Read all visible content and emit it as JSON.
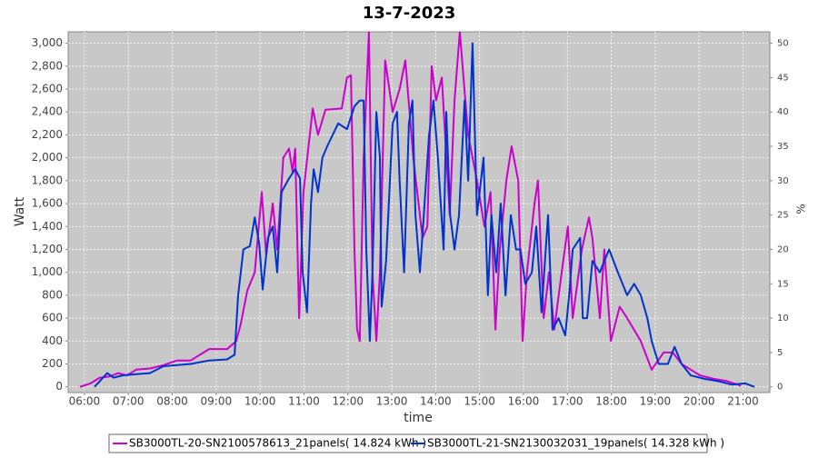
{
  "chart_data": {
    "type": "line",
    "title": "13-7-2023",
    "xlabel": "time",
    "ylabel": "Watt",
    "y2label": "%",
    "xlim": [
      5.63,
      21.61
    ],
    "xticks": [
      {
        "value": 6,
        "label": "06:00"
      },
      {
        "value": 7,
        "label": "07:00"
      },
      {
        "value": 8,
        "label": "08:00"
      },
      {
        "value": 9,
        "label": "09:00"
      },
      {
        "value": 10,
        "label": "10:00"
      },
      {
        "value": 11,
        "label": "11:00"
      },
      {
        "value": 12,
        "label": "12:00"
      },
      {
        "value": 13,
        "label": "13:00"
      },
      {
        "value": 14,
        "label": "14:00"
      },
      {
        "value": 15,
        "label": "15:00"
      },
      {
        "value": 16,
        "label": "16:00"
      },
      {
        "value": 17,
        "label": "17:00"
      },
      {
        "value": 18,
        "label": "18:00"
      },
      {
        "value": 19,
        "label": "19:00"
      },
      {
        "value": 20,
        "label": "20:00"
      },
      {
        "value": 21,
        "label": "21:00"
      }
    ],
    "ylim": [
      -50,
      3100
    ],
    "yticks": [
      0,
      200,
      400,
      600,
      800,
      {
        "value": 1000,
        "label": "1,000"
      },
      {
        "value": 1200,
        "label": "1,200"
      },
      {
        "value": 1400,
        "label": "1,400"
      },
      {
        "value": 1600,
        "label": "1,600"
      },
      {
        "value": 1800,
        "label": "1,800"
      },
      {
        "value": 2000,
        "label": "2,000"
      },
      {
        "value": 2200,
        "label": "2,200"
      },
      {
        "value": 2400,
        "label": "2,400"
      },
      {
        "value": 2600,
        "label": "2,600"
      },
      {
        "value": 2800,
        "label": "2,800"
      },
      {
        "value": 3000,
        "label": "3,000"
      }
    ],
    "y2lim": [
      -0.833,
      51.667
    ],
    "y2ticks": [
      0,
      5,
      10,
      15,
      20,
      25,
      30,
      35,
      40,
      45,
      50
    ],
    "grid": true,
    "series": [
      {
        "name": "SB3000TL-20-SN2100578613_21panels( 14.824 kWh )",
        "color": "#cc00cc",
        "x": [
          5.9,
          6.14,
          6.35,
          6.56,
          6.77,
          6.97,
          7.18,
          7.49,
          7.8,
          8.11,
          8.42,
          8.84,
          9.25,
          9.46,
          9.56,
          9.71,
          9.88,
          10.04,
          10.14,
          10.29,
          10.39,
          10.53,
          10.66,
          10.74,
          10.8,
          10.89,
          10.99,
          11.2,
          11.32,
          11.49,
          11.86,
          11.98,
          12.07,
          12.15,
          12.21,
          12.27,
          12.36,
          12.48,
          12.56,
          12.65,
          12.73,
          12.85,
          13.02,
          13.18,
          13.31,
          13.49,
          13.7,
          13.81,
          13.91,
          14.01,
          14.14,
          14.32,
          14.43,
          14.55,
          14.74,
          14.94,
          15.11,
          15.25,
          15.36,
          15.46,
          15.61,
          15.73,
          15.88,
          15.98,
          16.08,
          16.25,
          16.33,
          16.46,
          16.58,
          16.7,
          16.87,
          17.01,
          17.12,
          17.33,
          17.49,
          17.57,
          17.74,
          17.84,
          17.99,
          18.19,
          18.36,
          18.67,
          18.92,
          19.19,
          19.4,
          19.6,
          20.02,
          20.33,
          20.64,
          20.95
        ],
        "values": [
          0,
          30,
          80,
          90,
          120,
          100,
          150,
          160,
          190,
          230,
          230,
          330,
          330,
          400,
          550,
          840,
          1000,
          1700,
          1150,
          1600,
          1200,
          2000,
          2080,
          1880,
          2080,
          600,
          1700,
          2430,
          2200,
          2420,
          2430,
          2700,
          2720,
          1200,
          500,
          400,
          2000,
          3100,
          1000,
          400,
          1000,
          2850,
          2400,
          2600,
          2850,
          2000,
          1300,
          1400,
          2800,
          2500,
          2700,
          1500,
          2500,
          3100,
          2200,
          1800,
          1400,
          1700,
          500,
          1200,
          1800,
          2100,
          1800,
          400,
          1000,
          1600,
          1800,
          600,
          1000,
          500,
          1000,
          1400,
          600,
          1200,
          1480,
          1300,
          600,
          1200,
          400,
          700,
          600,
          400,
          150,
          300,
          300,
          200,
          100,
          70,
          50,
          10
        ]
      },
      {
        "name": "SB3000TL-21-SN2130032031_19panels( 14.328 kWh )",
        "color": "#0033cc",
        "x": [
          6.23,
          6.35,
          6.52,
          6.66,
          6.87,
          7.18,
          7.49,
          7.8,
          8.11,
          8.42,
          8.84,
          9.25,
          9.42,
          9.5,
          9.62,
          9.77,
          9.88,
          9.98,
          10.06,
          10.18,
          10.29,
          10.39,
          10.49,
          10.66,
          10.8,
          10.91,
          10.97,
          11.07,
          11.16,
          11.22,
          11.32,
          11.42,
          11.53,
          11.78,
          11.98,
          12.15,
          12.27,
          12.36,
          12.42,
          12.5,
          12.56,
          12.65,
          12.73,
          12.77,
          12.87,
          13.02,
          13.12,
          13.18,
          13.28,
          13.39,
          13.47,
          13.54,
          13.64,
          13.73,
          13.85,
          13.95,
          14.05,
          14.18,
          14.24,
          14.33,
          14.43,
          14.53,
          14.66,
          14.74,
          14.84,
          14.94,
          15.09,
          15.19,
          15.27,
          15.38,
          15.48,
          15.59,
          15.71,
          15.83,
          15.93,
          16.04,
          16.19,
          16.29,
          16.41,
          16.56,
          16.66,
          16.8,
          16.95,
          17.04,
          17.12,
          17.29,
          17.35,
          17.45,
          17.57,
          17.74,
          17.84,
          17.95,
          18.05,
          18.15,
          18.36,
          18.52,
          18.67,
          18.82,
          18.92,
          19.08,
          19.29,
          19.44,
          19.6,
          19.81,
          20.12,
          20.43,
          20.74,
          21.05,
          21.26
        ],
        "values": [
          0,
          50,
          120,
          80,
          100,
          110,
          120,
          180,
          190,
          200,
          230,
          240,
          280,
          800,
          1200,
          1230,
          1480,
          1250,
          850,
          1300,
          1400,
          1000,
          1700,
          1820,
          1900,
          1820,
          1000,
          650,
          1600,
          1900,
          1700,
          2000,
          2100,
          2300,
          2250,
          2450,
          2500,
          2500,
          1200,
          400,
          1000,
          2400,
          2000,
          700,
          1100,
          2300,
          2400,
          1800,
          1000,
          2300,
          2500,
          1500,
          1000,
          1500,
          2200,
          2500,
          2000,
          1200,
          2400,
          1500,
          1200,
          1500,
          2500,
          1800,
          3000,
          1500,
          2000,
          800,
          1500,
          1000,
          1600,
          800,
          1500,
          1200,
          1200,
          900,
          1000,
          1400,
          650,
          1500,
          500,
          600,
          450,
          800,
          1200,
          1300,
          600,
          600,
          1100,
          1000,
          1100,
          1200,
          1100,
          1000,
          800,
          900,
          800,
          600,
          400,
          200,
          200,
          350,
          200,
          100,
          70,
          50,
          20,
          30,
          0
        ]
      }
    ]
  }
}
